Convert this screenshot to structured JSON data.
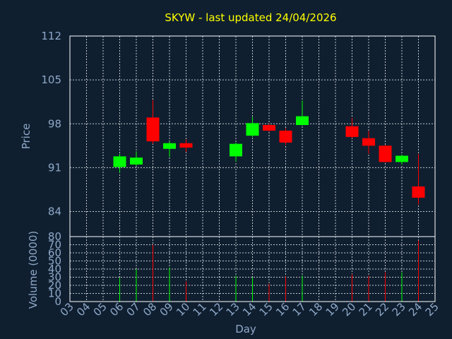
{
  "chart_data": {
    "type": "candlestick",
    "title": "SKYW - last updated 24/04/2026",
    "ylabel": "Price",
    "volume_ylabel": "Volume (0000)",
    "xlabel": "Day",
    "x_ticks": [
      "03",
      "04",
      "05",
      "06",
      "07",
      "08",
      "09",
      "10",
      "11",
      "12",
      "13",
      "14",
      "15",
      "16",
      "17",
      "18",
      "19",
      "20",
      "21",
      "22",
      "23",
      "24",
      "25"
    ],
    "y_ticks": [
      84,
      91,
      98,
      105,
      112
    ],
    "ylim": [
      80,
      112
    ],
    "volume_ticks": [
      0,
      10,
      20,
      30,
      40,
      50,
      60,
      70,
      80
    ],
    "volume_ylim": [
      0,
      80
    ],
    "up_color": "#00ff00",
    "down_color": "#ff0000",
    "grid": true,
    "candles": [
      {
        "day": 6,
        "open": 91.1,
        "high": 93.2,
        "low": 90.2,
        "close": 92.8,
        "volume": 29
      },
      {
        "day": 7,
        "open": 91.5,
        "high": 93.6,
        "low": 91.3,
        "close": 92.6,
        "volume": 40
      },
      {
        "day": 8,
        "open": 99.0,
        "high": 101.8,
        "low": 94.8,
        "close": 95.2,
        "volume": 70
      },
      {
        "day": 9,
        "open": 94.0,
        "high": 95.2,
        "low": 92.7,
        "close": 94.9,
        "volume": 42
      },
      {
        "day": 10,
        "open": 94.9,
        "high": 95.5,
        "low": 93.5,
        "close": 94.2,
        "volume": 25
      },
      {
        "day": 13,
        "open": 92.8,
        "high": 95.0,
        "low": 92.0,
        "close": 94.8,
        "volume": 32
      },
      {
        "day": 14,
        "open": 96.1,
        "high": 99.1,
        "low": 95.9,
        "close": 98.1,
        "volume": 30
      },
      {
        "day": 15,
        "open": 97.8,
        "high": 98.0,
        "low": 96.7,
        "close": 96.9,
        "volume": 22
      },
      {
        "day": 16,
        "open": 96.9,
        "high": 97.3,
        "low": 94.6,
        "close": 95.0,
        "volume": 31
      },
      {
        "day": 17,
        "open": 97.8,
        "high": 101.7,
        "low": 97.7,
        "close": 99.2,
        "volume": 32
      },
      {
        "day": 20,
        "open": 97.6,
        "high": 98.9,
        "low": 95.7,
        "close": 95.9,
        "volume": 34
      },
      {
        "day": 21,
        "open": 95.7,
        "high": 96.9,
        "low": 93.2,
        "close": 94.5,
        "volume": 32
      },
      {
        "day": 22,
        "open": 94.5,
        "high": 94.6,
        "low": 91.8,
        "close": 91.9,
        "volume": 36
      },
      {
        "day": 23,
        "open": 91.9,
        "high": 93.1,
        "low": 91.5,
        "close": 92.9,
        "volume": 36
      },
      {
        "day": 24,
        "open": 88.0,
        "high": 93.2,
        "low": 85.1,
        "close": 86.2,
        "volume": 75
      }
    ]
  }
}
